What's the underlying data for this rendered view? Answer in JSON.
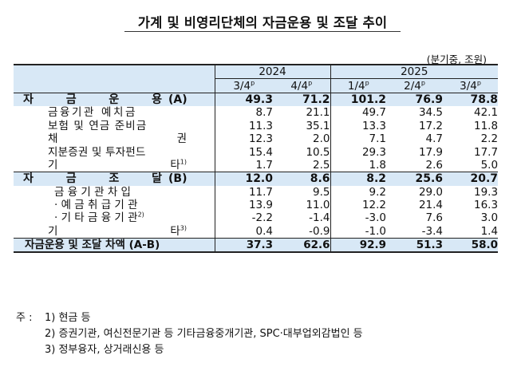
{
  "title": "가계 및 비영리단체의 자금운용 및 조달 추이",
  "unit": "(분기중, 조원)",
  "header": {
    "years": [
      "2024",
      "2025"
    ],
    "quarters": [
      {
        "q": "3/4",
        "sup": "p"
      },
      {
        "q": "4/4",
        "sup": "p"
      },
      {
        "q": "1/4",
        "sup": "p"
      },
      {
        "q": "2/4",
        "sup": "p"
      },
      {
        "q": "3/4",
        "sup": "p"
      }
    ]
  },
  "sections": {
    "uses": {
      "label_chars": [
        "자",
        "금",
        "운",
        "용"
      ],
      "label_suffix": "(A)",
      "values": [
        "49.3",
        "71.2",
        "101.2",
        "76.9",
        "78.8"
      ],
      "rows": [
        {
          "label": "금융기관 예치금",
          "values": [
            "8.7",
            "21.1",
            "49.7",
            "34.5",
            "42.1"
          ]
        },
        {
          "label": "보험 및 연금 준비금",
          "values": [
            "11.3",
            "35.1",
            "13.3",
            "17.2",
            "11.8"
          ]
        },
        {
          "label_left": "채",
          "label_right": "권",
          "values": [
            "12.3",
            "2.0",
            "7.1",
            "4.7",
            "2.2"
          ]
        },
        {
          "label": "지분증권 및 투자펀드",
          "values": [
            "15.4",
            "10.5",
            "29.3",
            "17.9",
            "17.7"
          ]
        },
        {
          "label_left": "기",
          "label_right": "타",
          "label_sup": "1)",
          "values": [
            "1.7",
            "2.5",
            "1.8",
            "2.6",
            "5.0"
          ]
        }
      ]
    },
    "sources": {
      "label_chars": [
        "자",
        "금",
        "조",
        "달"
      ],
      "label_suffix": "(B)",
      "values": [
        "12.0",
        "8.6",
        "8.2",
        "25.6",
        "20.7"
      ],
      "rows": [
        {
          "label": "금 융 기 관 차 입",
          "values": [
            "11.7",
            "9.5",
            "9.2",
            "29.0",
            "19.3"
          ]
        },
        {
          "label": "· 예 금 취 급 기 관",
          "values": [
            "13.9",
            "11.0",
            "12.2",
            "21.4",
            "16.3"
          ]
        },
        {
          "label": "· 기 타 금 융 기 관",
          "label_sup": "2)",
          "values": [
            "-2.2",
            "-1.4",
            "-3.0",
            "7.6",
            "3.0"
          ]
        },
        {
          "label_left": "기",
          "label_right": "타",
          "label_sup": "3)",
          "values": [
            "0.4",
            "-0.9",
            "-1.0",
            "-3.4",
            "1.4"
          ]
        }
      ]
    }
  },
  "total": {
    "label": "자금운용 및 조달 차액 (A-B)",
    "values": [
      "37.3",
      "62.6",
      "92.9",
      "51.3",
      "58.0"
    ]
  },
  "notes": {
    "prefix": "주 :",
    "items": [
      "1) 현금 등",
      "2) 증권기관, 여신전문기관 등 기타금융중개기관, SPC·대부업외감법인 등",
      "3) 정부융자, 상거래신용 등"
    ]
  }
}
